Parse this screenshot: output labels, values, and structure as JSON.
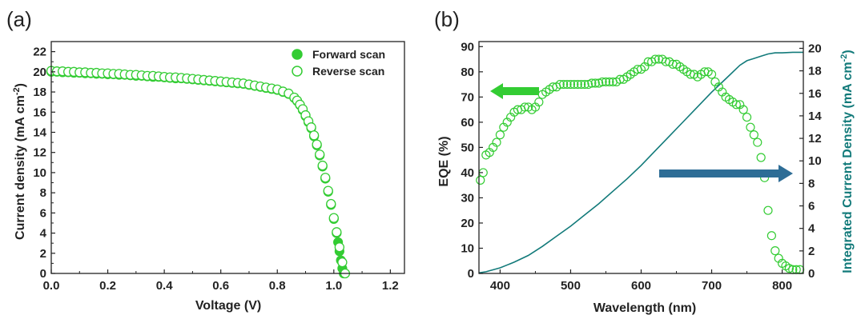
{
  "chart_data": [
    {
      "panel": "(a)",
      "type": "scatter",
      "xlabel": "Voltage (V)",
      "ylabel_main": "Current density (mA cm",
      "ylabel_sup": "-2",
      "ylabel_end": ")",
      "xlim": [
        0,
        1.25
      ],
      "ylim": [
        0,
        23
      ],
      "xticks": [
        "0.0",
        "0.2",
        "0.4",
        "0.6",
        "0.8",
        "1.0",
        "1.2"
      ],
      "yticks": [
        "0",
        "2",
        "4",
        "6",
        "8",
        "10",
        "12",
        "14",
        "16",
        "18",
        "20",
        "22"
      ],
      "legend_position": "top-right",
      "colors": {
        "series": "#33cc33",
        "axis": "#222222"
      },
      "series": [
        {
          "name": "Forward scan",
          "marker": "filled-circle",
          "x": [
            0.0,
            0.02,
            0.04,
            0.06,
            0.08,
            0.1,
            0.12,
            0.14,
            0.16,
            0.18,
            0.2,
            0.22,
            0.24,
            0.26,
            0.28,
            0.3,
            0.32,
            0.34,
            0.36,
            0.38,
            0.4,
            0.42,
            0.44,
            0.46,
            0.48,
            0.5,
            0.52,
            0.54,
            0.56,
            0.58,
            0.6,
            0.62,
            0.64,
            0.66,
            0.68,
            0.7,
            0.72,
            0.74,
            0.76,
            0.78,
            0.8,
            0.82,
            0.84,
            0.86,
            0.87,
            0.88,
            0.89,
            0.9,
            0.91,
            0.92,
            0.93,
            0.94,
            0.95,
            0.96,
            0.97,
            0.98,
            0.99,
            1.0,
            1.01,
            1.015,
            1.02,
            1.025,
            1.03,
            1.035
          ],
          "y": [
            20.0,
            20.0,
            19.95,
            19.95,
            19.9,
            19.9,
            19.85,
            19.85,
            19.8,
            19.8,
            19.75,
            19.75,
            19.7,
            19.7,
            19.65,
            19.6,
            19.6,
            19.55,
            19.5,
            19.5,
            19.45,
            19.4,
            19.35,
            19.35,
            19.3,
            19.25,
            19.2,
            19.15,
            19.1,
            19.05,
            19.0,
            18.95,
            18.9,
            18.85,
            18.8,
            18.7,
            18.6,
            18.5,
            18.4,
            18.3,
            18.2,
            18.0,
            17.8,
            17.4,
            17.1,
            16.7,
            16.2,
            15.6,
            15.0,
            14.4,
            13.6,
            12.7,
            11.7,
            10.6,
            9.4,
            8.1,
            6.8,
            5.4,
            4.0,
            3.1,
            2.2,
            1.3,
            0.5,
            0.0
          ]
        },
        {
          "name": "Reverse scan",
          "marker": "open-circle",
          "x": [
            0.0,
            0.02,
            0.04,
            0.06,
            0.08,
            0.1,
            0.12,
            0.14,
            0.16,
            0.18,
            0.2,
            0.22,
            0.24,
            0.26,
            0.28,
            0.3,
            0.32,
            0.34,
            0.36,
            0.38,
            0.4,
            0.42,
            0.44,
            0.46,
            0.48,
            0.5,
            0.52,
            0.54,
            0.56,
            0.58,
            0.6,
            0.62,
            0.64,
            0.66,
            0.68,
            0.7,
            0.72,
            0.74,
            0.76,
            0.78,
            0.8,
            0.82,
            0.84,
            0.86,
            0.87,
            0.88,
            0.89,
            0.9,
            0.91,
            0.92,
            0.93,
            0.94,
            0.95,
            0.96,
            0.97,
            0.98,
            0.99,
            1.0,
            1.01,
            1.02,
            1.03,
            1.04
          ],
          "y": [
            20.1,
            20.05,
            20.05,
            20.0,
            20.0,
            19.95,
            19.95,
            19.9,
            19.9,
            19.85,
            19.85,
            19.8,
            19.8,
            19.75,
            19.7,
            19.7,
            19.65,
            19.6,
            19.6,
            19.55,
            19.5,
            19.45,
            19.45,
            19.4,
            19.35,
            19.3,
            19.25,
            19.2,
            19.15,
            19.1,
            19.05,
            19.0,
            18.95,
            18.9,
            18.85,
            18.75,
            18.65,
            18.55,
            18.45,
            18.35,
            18.25,
            18.05,
            17.85,
            17.45,
            17.15,
            16.75,
            16.3,
            15.7,
            15.1,
            14.5,
            13.7,
            12.8,
            11.8,
            10.7,
            9.5,
            8.2,
            6.9,
            5.5,
            4.1,
            2.6,
            1.1,
            0.0
          ]
        }
      ]
    },
    {
      "panel": "(b)",
      "type": "line",
      "xlabel": "Wavelength (nm)",
      "ylabel_left": "EQE (%)",
      "ylabel_right_main": "Integrated Current Density (mA cm",
      "ylabel_right_sup": "-2",
      "ylabel_right_end": ")",
      "xlim": [
        370,
        830
      ],
      "ylim_left": [
        0,
        92
      ],
      "ylim_right": [
        0,
        20.6
      ],
      "xticks": [
        "400",
        "500",
        "600",
        "700",
        "800"
      ],
      "yticks_left": [
        "0",
        "10",
        "20",
        "30",
        "40",
        "50",
        "60",
        "70",
        "80",
        "90"
      ],
      "yticks_right": [
        "0",
        "2",
        "4",
        "6",
        "8",
        "10",
        "12",
        "14",
        "16",
        "18",
        "20"
      ],
      "colors": {
        "eqe": "#33cc33",
        "jsc": "#127a7a",
        "arrow_left": "#33cc33",
        "arrow_right": "#2e6d96"
      },
      "series": [
        {
          "axis": "left",
          "marker": "open-circle",
          "x": [
            372,
            376,
            380,
            385,
            390,
            395,
            400,
            405,
            410,
            415,
            420,
            425,
            430,
            435,
            440,
            445,
            450,
            455,
            460,
            465,
            470,
            475,
            480,
            485,
            490,
            495,
            500,
            505,
            510,
            515,
            520,
            525,
            530,
            535,
            540,
            545,
            550,
            555,
            560,
            565,
            570,
            575,
            580,
            585,
            590,
            595,
            600,
            605,
            610,
            615,
            620,
            625,
            630,
            635,
            640,
            645,
            650,
            655,
            660,
            665,
            670,
            675,
            680,
            685,
            690,
            695,
            700,
            705,
            710,
            715,
            720,
            725,
            730,
            735,
            740,
            745,
            750,
            755,
            760,
            765,
            770,
            775,
            780,
            785,
            790,
            795,
            800,
            805,
            810,
            815,
            820,
            825
          ],
          "y": [
            37,
            40,
            47,
            48,
            50,
            52,
            55,
            58,
            60,
            62,
            64,
            65,
            65,
            66,
            66,
            65,
            66,
            68,
            71,
            72,
            73,
            74,
            74,
            75,
            75,
            75,
            75,
            75,
            75,
            75,
            75,
            75,
            75.5,
            75.5,
            75.5,
            76,
            76,
            76,
            76,
            76,
            77,
            77,
            78,
            79,
            80,
            81,
            81,
            82,
            84,
            84,
            85,
            85,
            85,
            84,
            84,
            83,
            83,
            82,
            81,
            80,
            79,
            79,
            78,
            79,
            80,
            80,
            79,
            76,
            74,
            72,
            70,
            69,
            68,
            67,
            67,
            65,
            62,
            58,
            55,
            52,
            46,
            38,
            25,
            15,
            9,
            6,
            4,
            3,
            2,
            1.5,
            1.5,
            1.5
          ]
        },
        {
          "axis": "right",
          "marker": "none",
          "x": [
            370,
            380,
            400,
            420,
            440,
            460,
            480,
            500,
            520,
            540,
            560,
            580,
            600,
            620,
            640,
            660,
            680,
            700,
            720,
            740,
            750,
            760,
            770,
            780,
            790,
            800,
            815,
            830
          ],
          "y": [
            0.05,
            0.15,
            0.5,
            1.0,
            1.6,
            2.4,
            3.3,
            4.2,
            5.2,
            6.2,
            7.3,
            8.4,
            9.6,
            10.9,
            12.2,
            13.5,
            14.8,
            16.1,
            17.3,
            18.5,
            18.9,
            19.1,
            19.3,
            19.5,
            19.6,
            19.6,
            19.65,
            19.65
          ]
        }
      ]
    }
  ]
}
